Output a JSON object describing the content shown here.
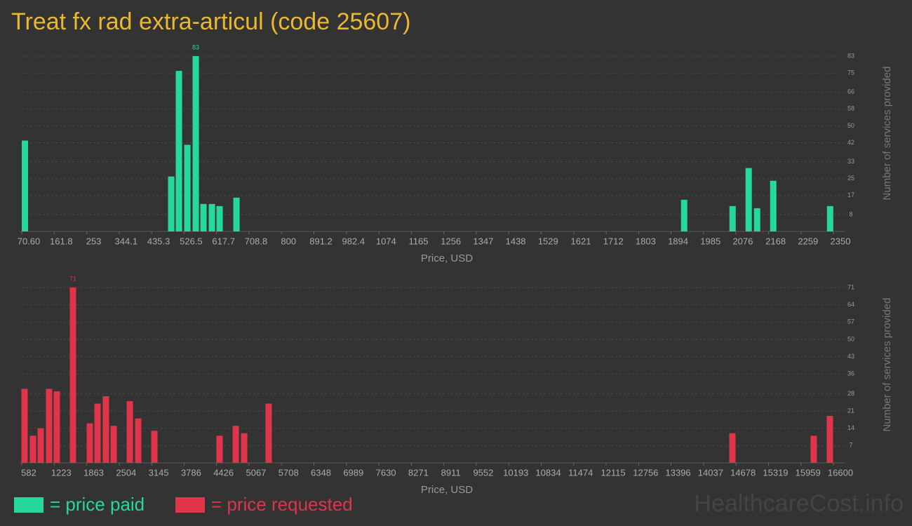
{
  "title": "Treat fx rad extra-articul (code 25607)",
  "watermark": "HealthcareCost.info",
  "chart_data": [
    {
      "type": "bar",
      "x": [
        79.5,
        490.3,
        512,
        535.7,
        559.3,
        581,
        604.6,
        626.3,
        673.6,
        1930.8,
        2066.8,
        2112,
        2135.7,
        2181,
        2340.7
      ],
      "series": [
        {
          "name": "= price paid",
          "color": "#27d89b",
          "values": [
            43,
            26,
            76,
            41,
            83,
            13,
            13,
            12,
            16,
            15,
            12,
            30,
            11,
            24,
            12
          ]
        }
      ],
      "xlim": [
        70.6,
        2350
      ],
      "xticks": [
        {
          "value": 70.6,
          "label": "70.60"
        },
        161.8,
        253,
        344.1,
        435.3,
        526.5,
        617.7,
        708.8,
        800,
        891.2,
        982.4,
        1074,
        1165,
        1256,
        1347,
        1438,
        1529,
        1621,
        1712,
        1803,
        1894,
        1985,
        2076,
        2168,
        2259,
        2350
      ],
      "ylim": [
        0,
        83
      ],
      "yticks": [
        8,
        17,
        25,
        33,
        42,
        50,
        58,
        66,
        75,
        83
      ],
      "xlabel": "Price, USD",
      "ylabel": "Number of services provided",
      "grid": true
    },
    {
      "type": "bar",
      "x": [
        637,
        803.5,
        955.8,
        1122,
        1274,
        1592.6,
        1925,
        2077,
        2243,
        2396,
        2714.5,
        2880.6,
        3199,
        4486,
        4805,
        4971,
        5455,
        14606,
        16212,
        16530
      ],
      "series": [
        {
          "name": "= price requested",
          "color": "#e0344a",
          "values": [
            30,
            11,
            14,
            30,
            29,
            71,
            16,
            24,
            27,
            15,
            25,
            18,
            13,
            11,
            15,
            12,
            24,
            12,
            11,
            19
          ]
        }
      ],
      "xlim": [
        582,
        16600
      ],
      "xticks": [
        582,
        1223,
        1863,
        2504,
        3145,
        3786,
        4426,
        5067,
        5708,
        6348,
        6989,
        7630,
        8271,
        8911,
        9552,
        10193,
        10834,
        11474,
        12115,
        12756,
        13396,
        14037,
        14678,
        15319,
        15959,
        16600
      ],
      "ylim": [
        0,
        71
      ],
      "yticks": [
        7,
        14,
        21,
        28,
        36,
        43,
        50,
        57,
        64,
        71
      ],
      "xlabel": "Price, USD",
      "ylabel": "Number of services provided",
      "grid": true
    }
  ]
}
